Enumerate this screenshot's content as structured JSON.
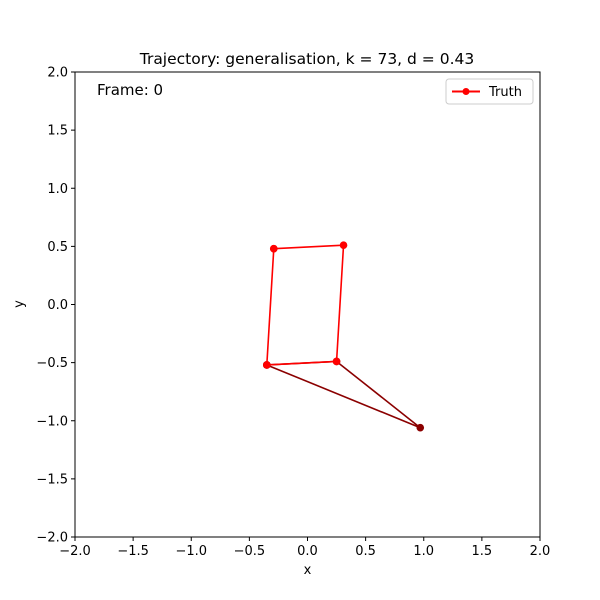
{
  "chart_data": {
    "type": "line",
    "title": "Trajectory: generalisation, k = 73, d = 0.43",
    "xlabel": "x",
    "ylabel": "y",
    "xlim": [
      -2.0,
      2.0
    ],
    "ylim": [
      -2.0,
      2.0
    ],
    "xticks": [
      "−2.0",
      "−1.5",
      "−1.0",
      "−0.5",
      "0.0",
      "0.5",
      "1.0",
      "1.5",
      "2.0"
    ],
    "yticks": [
      "−2.0",
      "−1.5",
      "−1.0",
      "−0.5",
      "0.0",
      "0.5",
      "1.0",
      "1.5",
      "2.0"
    ],
    "annotation": "Frame: 0",
    "grid": false,
    "legend_position": "top-right",
    "series": [
      {
        "name": "Truth",
        "color": "#ff0000",
        "points": [
          {
            "x": -0.29,
            "y": 0.48
          },
          {
            "x": 0.31,
            "y": 0.51
          },
          {
            "x": 0.25,
            "y": -0.49
          },
          {
            "x": -0.35,
            "y": -0.52
          },
          {
            "x": -0.29,
            "y": 0.48
          }
        ]
      },
      {
        "color": "#8b0000",
        "points": [
          {
            "x": -0.35,
            "y": -0.52
          },
          {
            "x": 0.25,
            "y": -0.49
          },
          {
            "x": 0.97,
            "y": -1.06
          },
          {
            "x": -0.35,
            "y": -0.52
          }
        ]
      }
    ]
  }
}
